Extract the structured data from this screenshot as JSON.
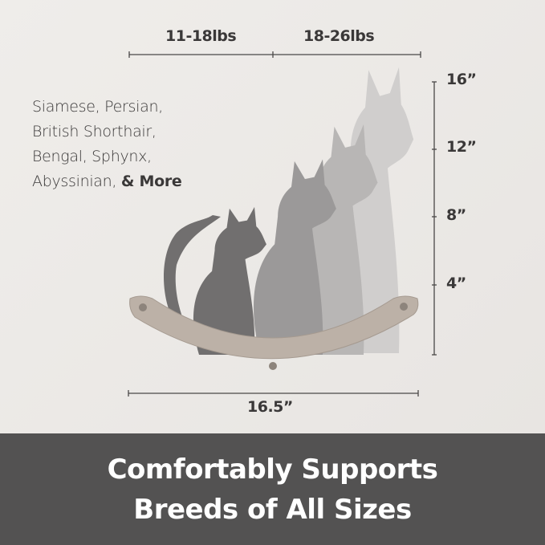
{
  "weights": {
    "left": "11-18lbs",
    "right": "18-26lbs"
  },
  "heights": [
    "16”",
    "12”",
    "8”",
    "4”"
  ],
  "width_label": "16.5”",
  "breeds": {
    "lines": [
      "Siamese, Persian,",
      "British Shorthair,",
      "Bengal, Sphynx,"
    ],
    "last_line": "Abyssinian, ",
    "more": "& More"
  },
  "banner": {
    "line1": "Comfortably Supports",
    "line2": "Breeds of All Sizes"
  },
  "colors": {
    "background": "#ece9e6",
    "banner": "#535252",
    "shelf": "#bcb1a7",
    "text": "#3a3838"
  }
}
